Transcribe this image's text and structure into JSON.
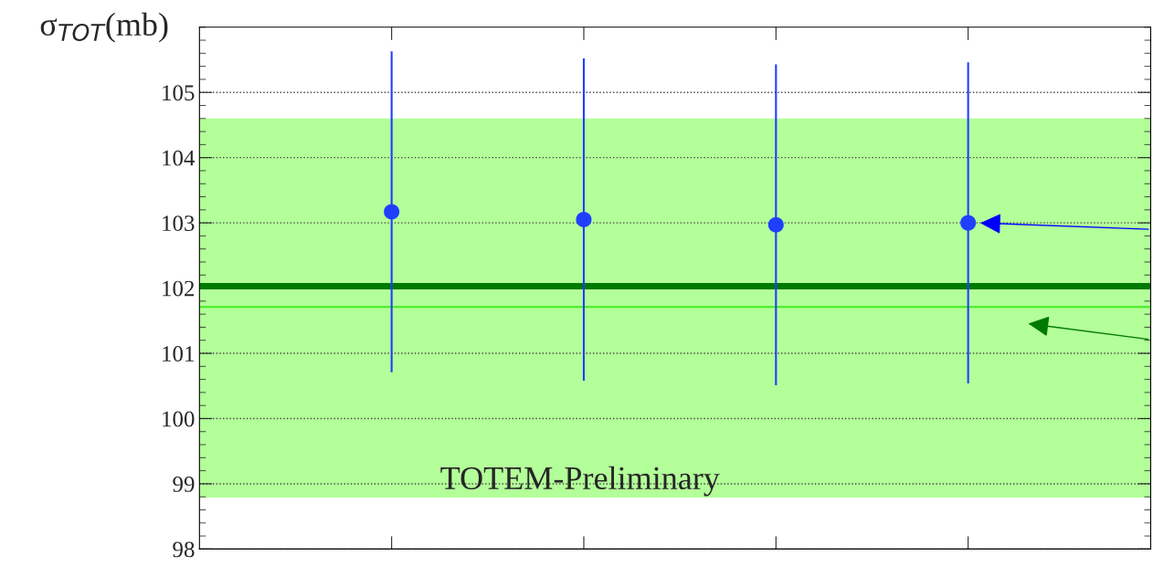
{
  "chart_data": {
    "type": "scatter",
    "ylabel": "σ$_{TOT}$(mb)",
    "categories": [
      null,
      null,
      null,
      null
    ],
    "series": [
      {
        "color": "#1f3fff",
        "values": [
          103.17,
          103.05,
          102.97,
          103.0
        ],
        "errors": [
          2.46,
          2.47,
          2.46,
          2.46
        ]
      }
    ],
    "ylim": [
      98,
      106
    ],
    "yticks": [
      98,
      99,
      100,
      101,
      102,
      103,
      104,
      105
    ],
    "bands": [
      {
        "axis": "y",
        "from": 98.79,
        "to": 104.6,
        "color": "#b3ff99"
      }
    ],
    "ref_lines": [
      {
        "axis": "y",
        "value": 102.03,
        "color": "#007a00"
      },
      {
        "axis": "y",
        "value": 101.71,
        "color": "#44ee22"
      }
    ],
    "annotations": [
      "TOTEM-Preliminary"
    ],
    "grid": "y",
    "marker": "circle",
    "tick_labels": "y"
  }
}
